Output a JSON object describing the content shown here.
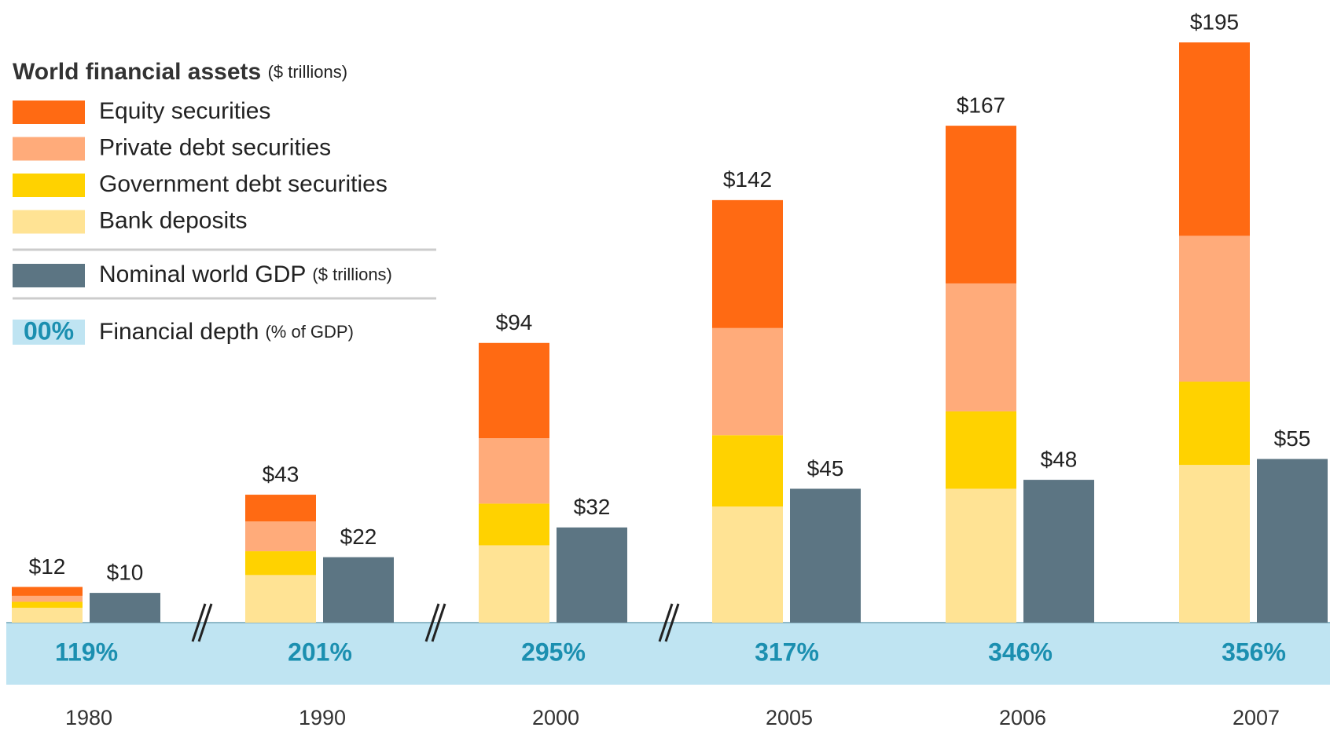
{
  "chart_data": {
    "type": "bar",
    "legend_title": "World financial assets",
    "legend_title_unit": "($ trillions)",
    "categories": [
      "1980",
      "1990",
      "2000",
      "2005",
      "2006",
      "2007"
    ],
    "series": [
      {
        "name": "Bank deposits",
        "color": "#ffe394",
        "values": [
          5,
          16,
          26,
          39,
          45,
          53
        ]
      },
      {
        "name": "Government debt securities",
        "color": "#ffd200",
        "values": [
          2,
          8,
          14,
          24,
          26,
          28
        ]
      },
      {
        "name": "Private debt securities",
        "color": "#ffab7a",
        "values": [
          2,
          10,
          22,
          36,
          43,
          49
        ]
      },
      {
        "name": "Equity securities",
        "color": "#ff6a13",
        "values": [
          3,
          9,
          32,
          43,
          53,
          65
        ]
      }
    ],
    "totals": [
      12,
      43,
      94,
      142,
      167,
      195
    ],
    "total_labels": [
      "$12",
      "$43",
      "$94",
      "$142",
      "$167",
      "$195"
    ],
    "gdp": {
      "name": "Nominal world GDP",
      "unit": "($ trillions)",
      "color": "#5c7583",
      "values": [
        10,
        22,
        32,
        45,
        48,
        55
      ],
      "value_labels": [
        "$10",
        "$22",
        "$32",
        "$45",
        "$48",
        "$55"
      ]
    },
    "depth": {
      "name": "Financial depth",
      "unit": "(% of GDP)",
      "sample": "00%",
      "color": "#1b8fb0",
      "band_color": "#bfe4f2",
      "values": [
        119,
        201,
        295,
        317,
        346,
        356
      ],
      "value_labels": [
        "119%",
        "201%",
        "295%",
        "317%",
        "346%",
        "356%"
      ]
    }
  }
}
